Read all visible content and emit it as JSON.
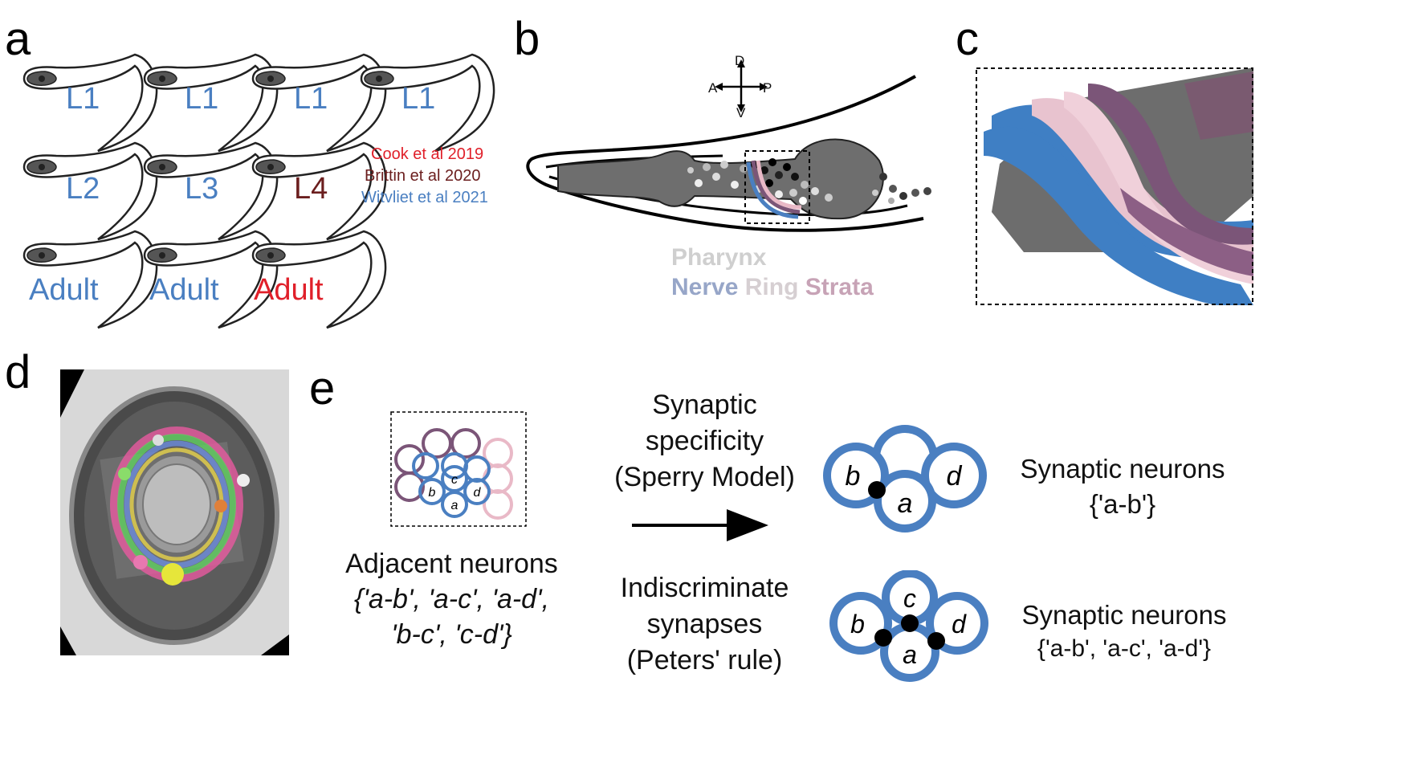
{
  "panels": {
    "a": "a",
    "b": "b",
    "c": "c",
    "d": "d",
    "e": "e"
  },
  "colors": {
    "blue": "#4a7fc1",
    "red": "#e0202a",
    "brown": "#6b1e1e",
    "purple": "#7b5578",
    "pink": "#e9b9c7",
    "gray": "#6e6e6e"
  },
  "panel_a": {
    "worms": [
      {
        "label": "L1",
        "color": "blue"
      },
      {
        "label": "L1",
        "color": "blue"
      },
      {
        "label": "L1",
        "color": "blue"
      },
      {
        "label": "L1",
        "color": "blue"
      },
      {
        "label": "L2",
        "color": "blue"
      },
      {
        "label": "L3",
        "color": "blue"
      },
      {
        "label": "L4",
        "color": "brown"
      },
      {
        "label": "Adult",
        "color": "blue"
      },
      {
        "label": "Adult",
        "color": "blue"
      },
      {
        "label": "Adult",
        "color": "red"
      }
    ],
    "references": [
      {
        "text": "Cook et al 2019",
        "color": "red"
      },
      {
        "text": "Brittin et al 2020",
        "color": "brown"
      },
      {
        "text": "Witvliet et al 2021",
        "color": "blue"
      }
    ]
  },
  "panel_b": {
    "axes": {
      "d": "D",
      "v": "V",
      "a": "A",
      "p": "P"
    },
    "legend": {
      "pharynx": "Pharynx",
      "nerve": "Nerve",
      "ring": "Ring",
      "strata": "Strata"
    }
  },
  "panel_e": {
    "small_labels": {
      "a": "a",
      "b": "b",
      "c": "c",
      "d": "d"
    },
    "adjacent": {
      "title": "Adjacent neurons",
      "line1": "{'a-b', 'a-c', 'a-d',",
      "line2": "'b-c', 'c-d'}"
    },
    "sperry": {
      "line1": "Synaptic",
      "line2": "specificity",
      "line3": "(Sperry Model)"
    },
    "peters": {
      "line1": "Indiscriminate",
      "line2": "synapses",
      "line3": "(Peters' rule)"
    },
    "result_top": {
      "line1": "Synaptic neurons",
      "line2": "{'a-b'}"
    },
    "result_bottom": {
      "line1": "Synaptic neurons",
      "line2": "{'a-b', 'a-c', 'a-d'}"
    },
    "node_labels": {
      "a": "a",
      "b": "b",
      "c": "c",
      "d": "d"
    }
  }
}
